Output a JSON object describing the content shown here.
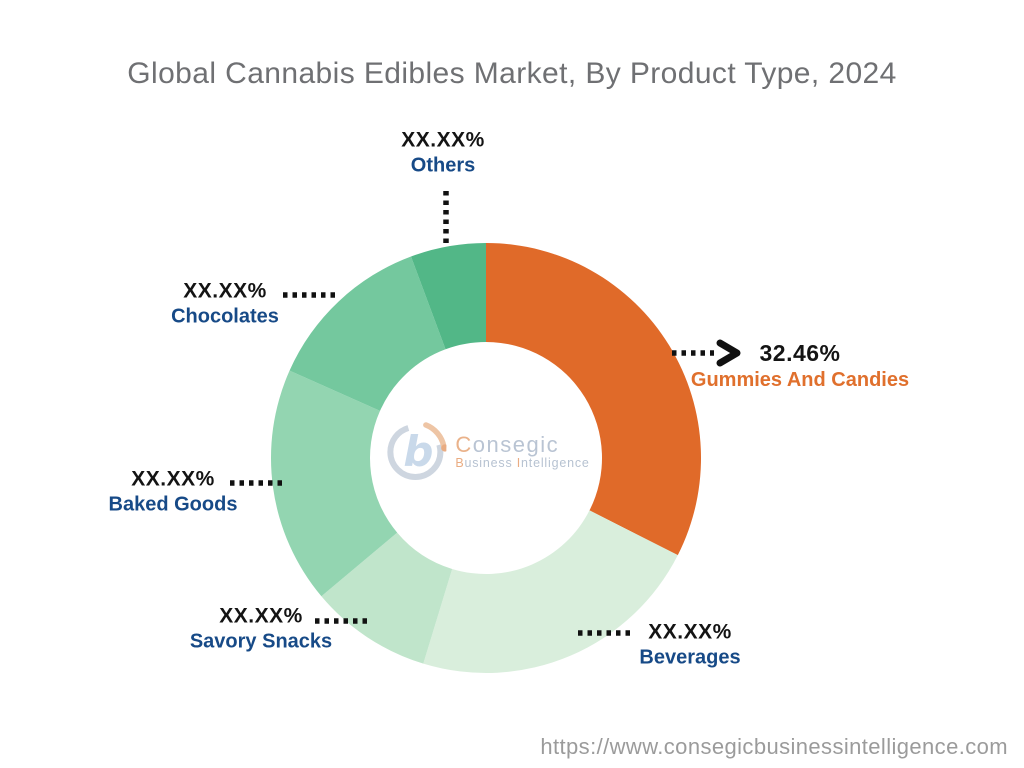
{
  "title": {
    "text": "Global Cannabis Edibles Market, By Product Type, 2024",
    "color": "#6f7073"
  },
  "watermark": {
    "brand_initial": "C",
    "brand_rest": "onsegic",
    "tag1_initial": "B",
    "tag1_rest": "usiness",
    "tag2_initial": "I",
    "tag2_rest": "ntelligence"
  },
  "footer": {
    "url": "https://www.consegicbusinessintelligence.com",
    "color": "#9b9b9b"
  },
  "colors": {
    "accent_orange": "#E0702D",
    "label_navy": "#174A87",
    "value_black": "#141414",
    "connector_black": "#111111",
    "title_gray": "#6f7073",
    "url_gray": "#9b9b9b"
  },
  "chart_data": {
    "type": "pie",
    "subtype": "donut",
    "title": "Global Cannabis Edibles Market, By Product Type, 2024",
    "start_angle_deg": 0,
    "direction": "clockwise",
    "donut_hole_ratio": 0.54,
    "values_masked": true,
    "segments": [
      {
        "label": "Gummies And Candies",
        "value_label": "32.46%",
        "value_pct": 32.46,
        "masked": false,
        "color": "#E06A29",
        "label_color": "#E0702D"
      },
      {
        "label": "Beverages",
        "value_label": "XX.XX%",
        "value_pct": 22.25,
        "masked": true,
        "color": "#D9EEDC",
        "label_color": "#174A87"
      },
      {
        "label": "Savory Snacks",
        "value_label": "XX.XX%",
        "value_pct": 9.17,
        "masked": true,
        "color": "#C0E5CB",
        "label_color": "#174A87"
      },
      {
        "label": "Baked Goods",
        "value_label": "XX.XX%",
        "value_pct": 17.78,
        "masked": true,
        "color": "#93D5B1",
        "label_color": "#174A87"
      },
      {
        "label": "Chocolates",
        "value_label": "XX.XX%",
        "value_pct": 12.67,
        "masked": true,
        "color": "#74C89E",
        "label_color": "#174A87"
      },
      {
        "label": "Others",
        "value_label": "XX.XX%",
        "value_pct": 5.67,
        "masked": true,
        "color": "#52B787",
        "label_color": "#174A87"
      }
    ]
  }
}
